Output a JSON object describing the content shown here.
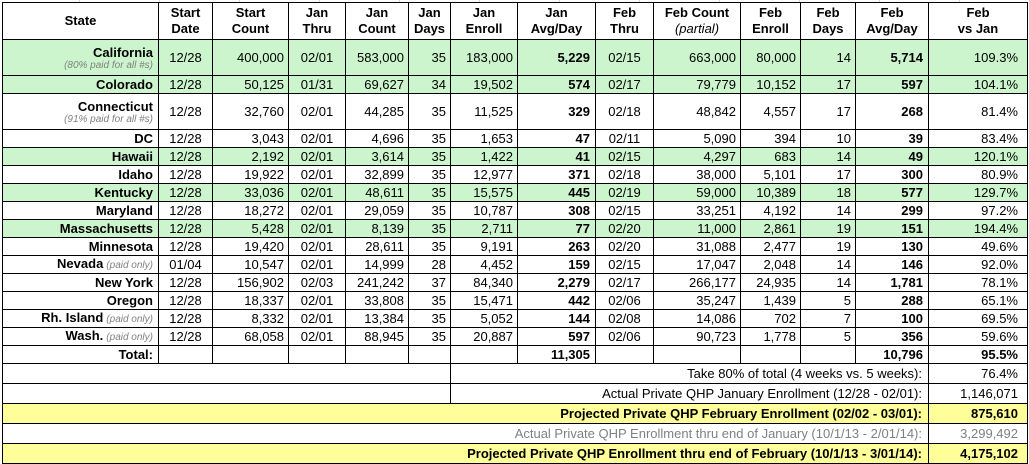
{
  "header": {
    "columns": [
      {
        "line1": "State",
        "line2": ""
      },
      {
        "line1": "Start",
        "line2": "Date"
      },
      {
        "line1": "Start",
        "line2": "Count"
      },
      {
        "line1": "Jan",
        "line2": "Thru"
      },
      {
        "line1": "Jan",
        "line2": "Count"
      },
      {
        "line1": "Jan",
        "line2": "Days"
      },
      {
        "line1": "Jan",
        "line2": "Enroll"
      },
      {
        "line1": "Jan",
        "line2": "Avg/Day"
      },
      {
        "line1": "Feb",
        "line2": "Thru"
      },
      {
        "line1": "Feb Count",
        "line2": "(partial)"
      },
      {
        "line1": "Feb",
        "line2": "Enroll"
      },
      {
        "line1": "Feb",
        "line2": "Days"
      },
      {
        "line1": "Feb",
        "line2": "Avg/Day"
      },
      {
        "line1": "Feb",
        "line2": "vs Jan"
      }
    ]
  },
  "rows": [
    {
      "state": "California",
      "note": "(80% paid for all #s)",
      "note_layout": "below",
      "highlight": true,
      "cells": [
        "12/28",
        "400,000",
        "02/01",
        "583,000",
        "35",
        "183,000",
        "5,229",
        "02/15",
        "663,000",
        "80,000",
        "14",
        "5,714",
        "109.3%"
      ]
    },
    {
      "state": "Colorado",
      "note": "",
      "note_layout": "",
      "highlight": true,
      "cells": [
        "12/28",
        "50,125",
        "01/31",
        "69,627",
        "34",
        "19,502",
        "574",
        "02/17",
        "79,779",
        "10,152",
        "17",
        "597",
        "104.1%"
      ]
    },
    {
      "state": "Connecticut",
      "note": "(91% paid for all #s)",
      "note_layout": "below",
      "highlight": false,
      "cells": [
        "12/28",
        "32,760",
        "02/01",
        "44,285",
        "35",
        "11,525",
        "329",
        "02/18",
        "48,842",
        "4,557",
        "17",
        "268",
        "81.4%"
      ]
    },
    {
      "state": "DC",
      "note": "",
      "note_layout": "",
      "highlight": false,
      "cells": [
        "12/28",
        "3,043",
        "02/01",
        "4,696",
        "35",
        "1,653",
        "47",
        "02/11",
        "5,090",
        "394",
        "10",
        "39",
        "83.4%"
      ]
    },
    {
      "state": "Hawaii",
      "note": "",
      "note_layout": "",
      "highlight": true,
      "cells": [
        "12/28",
        "2,192",
        "02/01",
        "3,614",
        "35",
        "1,422",
        "41",
        "02/15",
        "4,297",
        "683",
        "14",
        "49",
        "120.1%"
      ]
    },
    {
      "state": "Idaho",
      "note": "",
      "note_layout": "",
      "highlight": false,
      "cells": [
        "12/28",
        "19,922",
        "02/01",
        "32,899",
        "35",
        "12,977",
        "371",
        "02/18",
        "38,000",
        "5,101",
        "17",
        "300",
        "80.9%"
      ]
    },
    {
      "state": "Kentucky",
      "note": "",
      "note_layout": "",
      "highlight": true,
      "cells": [
        "12/28",
        "33,036",
        "02/01",
        "48,611",
        "35",
        "15,575",
        "445",
        "02/19",
        "59,000",
        "10,389",
        "18",
        "577",
        "129.7%"
      ]
    },
    {
      "state": "Maryland",
      "note": "",
      "note_layout": "",
      "highlight": false,
      "cells": [
        "12/28",
        "18,272",
        "02/01",
        "29,059",
        "35",
        "10,787",
        "308",
        "02/15",
        "33,251",
        "4,192",
        "14",
        "299",
        "97.2%"
      ]
    },
    {
      "state": "Massachusetts",
      "note": "",
      "note_layout": "",
      "highlight": true,
      "cells": [
        "12/28",
        "5,428",
        "02/01",
        "8,139",
        "35",
        "2,711",
        "77",
        "02/20",
        "11,000",
        "2,861",
        "19",
        "151",
        "194.4%"
      ]
    },
    {
      "state": "Minnesota",
      "note": "",
      "note_layout": "",
      "highlight": false,
      "cells": [
        "12/28",
        "19,420",
        "02/01",
        "28,611",
        "35",
        "9,191",
        "263",
        "02/20",
        "31,088",
        "2,477",
        "19",
        "130",
        "49.6%"
      ]
    },
    {
      "state": "Nevada",
      "note": "(paid only)",
      "note_layout": "inline",
      "highlight": false,
      "cells": [
        "01/04",
        "10,547",
        "02/01",
        "14,999",
        "28",
        "4,452",
        "159",
        "02/15",
        "17,047",
        "2,048",
        "14",
        "146",
        "92.0%"
      ]
    },
    {
      "state": "New York",
      "note": "",
      "note_layout": "",
      "highlight": false,
      "cells": [
        "12/28",
        "156,902",
        "02/03",
        "241,242",
        "37",
        "84,340",
        "2,279",
        "02/17",
        "266,177",
        "24,935",
        "14",
        "1,781",
        "78.1%"
      ]
    },
    {
      "state": "Oregon",
      "note": "",
      "note_layout": "",
      "highlight": false,
      "cells": [
        "12/28",
        "18,337",
        "02/01",
        "33,808",
        "35",
        "15,471",
        "442",
        "02/06",
        "35,247",
        "1,439",
        "5",
        "288",
        "65.1%"
      ]
    },
    {
      "state": "Rh. Island",
      "note": "(paid only)",
      "note_layout": "inline",
      "highlight": false,
      "cells": [
        "12/28",
        "8,332",
        "02/01",
        "13,384",
        "35",
        "5,052",
        "144",
        "02/08",
        "14,086",
        "702",
        "7",
        "100",
        "69.5%"
      ]
    },
    {
      "state": "Wash.",
      "note": "(paid only)",
      "note_layout": "inline",
      "highlight": false,
      "cells": [
        "12/28",
        "68,058",
        "02/01",
        "88,945",
        "35",
        "20,887",
        "597",
        "02/06",
        "90,723",
        "1,778",
        "5",
        "356",
        "59.6%"
      ]
    }
  ],
  "total_row": {
    "label": "Total:",
    "cells": [
      "",
      "",
      "",
      "",
      "",
      "",
      "11,305",
      "",
      "",
      "",
      "",
      "10,796",
      "95.5%"
    ]
  },
  "summary": [
    {
      "key": "take-80-of-total",
      "label": "Take 80% of total (4 weeks vs. 5 weeks):",
      "value": "76.4%",
      "variant": "boxed"
    },
    {
      "key": "actual-january-enrollment",
      "label": "Actual Private QHP January Enrollment (12/28 - 02/01):",
      "value": "1,146,071",
      "variant": "boxed"
    },
    {
      "key": "projected-february-enrollment",
      "label": "Projected Private QHP February Enrollment (02/02 - 03/01):",
      "value": "875,610",
      "variant": "yellow"
    },
    {
      "key": "actual-enrollment-thru-january",
      "label": "Actual Private QHP Enrollment thru end of January (10/1/13 - 2/01/14):",
      "value": "3,299,492",
      "variant": "gray"
    },
    {
      "key": "projected-enrollment-thru-february",
      "label": "Projected Private QHP Enrollment thru end of February (10/1/13 - 3/01/14):",
      "value": "4,175,102",
      "variant": "yellow"
    }
  ],
  "colors": {
    "row_highlight_green": "#cdf5cd",
    "summary_highlight_yellow": "#ffff99",
    "note_gray": "#7f7f7f",
    "muted_row_gray": "#808080"
  }
}
